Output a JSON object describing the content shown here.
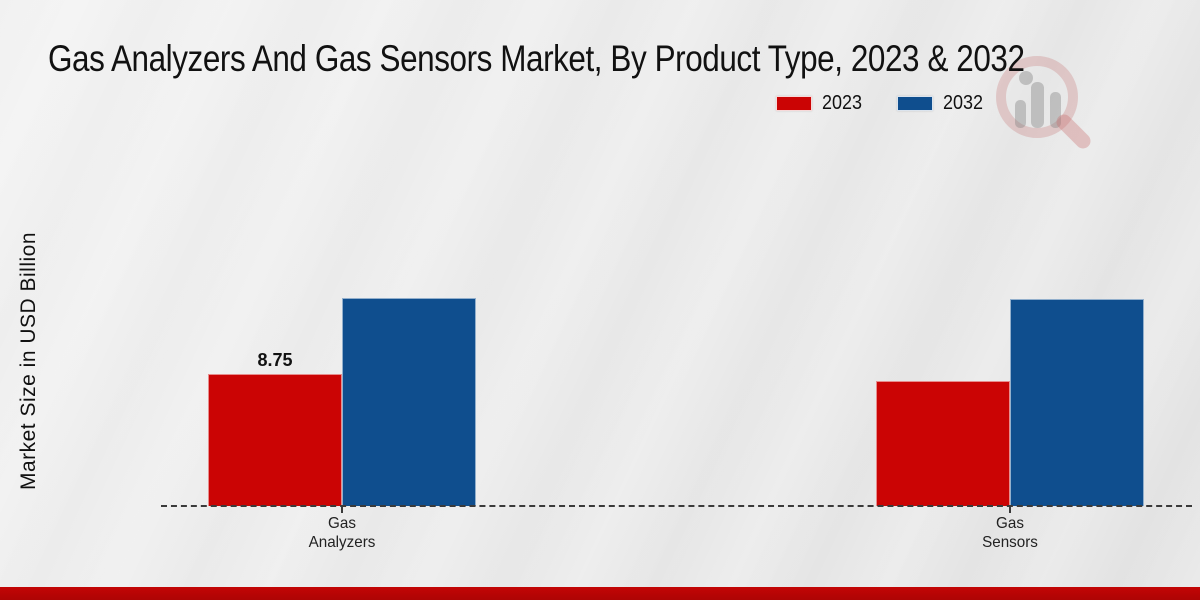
{
  "chart_data": {
    "type": "bar",
    "title": "Gas Analyzers And Gas Sensors Market, By Product Type, 2023 & 2032",
    "ylabel": "Market Size in USD Billion",
    "xlabel": "",
    "categories": [
      "Gas Analyzers",
      "Gas Sensors"
    ],
    "tick_labels": [
      "Gas\nAnalyzers",
      "Gas\nSensors"
    ],
    "series": [
      {
        "name": "2023",
        "color": "#cb0404",
        "values": [
          8.75,
          8.3
        ]
      },
      {
        "name": "2032",
        "color": "#0f4e8e",
        "values": [
          13.8,
          13.7
        ]
      }
    ],
    "value_labels": [
      {
        "series_index": 0,
        "category_index": 0,
        "text": "8.75"
      }
    ],
    "ylim": [
      0,
      15
    ],
    "grid": false,
    "legend_position": "top-right",
    "baseline_style": "dashed",
    "baseline_color": "#3a3a3a"
  },
  "watermark": {
    "icon": "magnifier-bar-chart-logo",
    "ring_color": "#d9a8a8",
    "bars_color": "#9a9a9a",
    "handle_color": "#cf9a9a"
  },
  "footer": {
    "accent_color": "#b00606"
  }
}
